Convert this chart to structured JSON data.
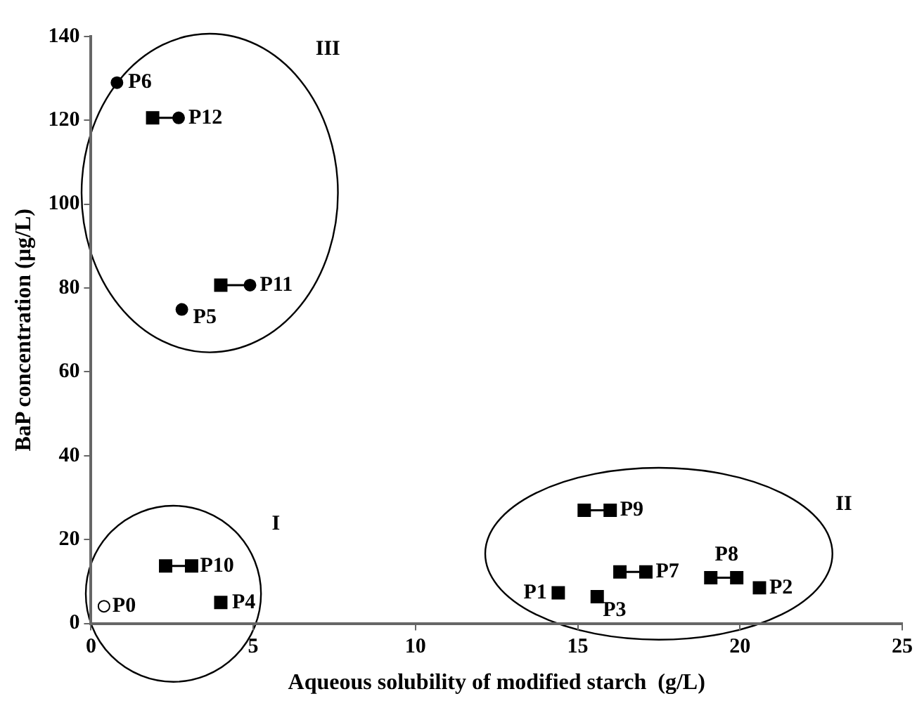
{
  "chart_data": {
    "type": "scatter",
    "xlabel": "Aqueous solubility of modified starch  (g/L)",
    "ylabel": "BaP concentration (µg/L)",
    "xlim": [
      0,
      25
    ],
    "xticks": [
      0,
      5,
      10,
      15,
      20,
      25
    ],
    "ylim": [
      0,
      140
    ],
    "yticks": [
      0,
      20,
      40,
      60,
      80,
      100,
      120,
      140
    ],
    "legend": false,
    "series": [
      {
        "type": "line",
        "color": "#000000",
        "marker": "none",
        "x": [
          16.3,
          17.1
        ],
        "values": [
          12.3,
          12.3
        ]
      },
      {
        "type": "line",
        "color": "#000000",
        "marker": "none",
        "x": [
          19.1,
          19.9
        ],
        "values": [
          10.9,
          10.9
        ]
      },
      {
        "type": "line",
        "color": "#000000",
        "marker": "none",
        "x": [
          15.2,
          16.0
        ],
        "values": [
          27,
          27
        ]
      },
      {
        "type": "line",
        "color": "#000000",
        "marker": "none",
        "x": [
          2.3,
          3.1
        ],
        "values": [
          13.7,
          13.7
        ]
      },
      {
        "type": "line",
        "color": "#000000",
        "marker": "none",
        "x": [
          4.0,
          4.9
        ],
        "values": [
          80.7,
          80.7
        ]
      },
      {
        "type": "line",
        "color": "#000000",
        "marker": "none",
        "x": [
          1.9,
          2.7
        ],
        "values": [
          120.6,
          120.6
        ]
      },
      {
        "color": "#000000",
        "marker": "square",
        "x": [
          14.4,
          20.6,
          15.6,
          4.0,
          16.3,
          17.1,
          19.1,
          19.9,
          15.2,
          16.0,
          2.3,
          3.1,
          4.0,
          1.9
        ],
        "values": [
          7.3,
          8.5,
          6.4,
          5.0,
          12.3,
          12.3,
          10.9,
          10.9,
          27,
          27,
          13.7,
          13.7,
          80.7,
          120.6
        ]
      },
      {
        "color": "#000000",
        "marker": "circle",
        "x": [
          2.8,
          0.8,
          4.9,
          2.7
        ],
        "values": [
          74.9,
          129,
          80.7,
          120.6
        ]
      },
      {
        "color": "#ffffff",
        "marker": "circle",
        "x": [
          0.4
        ],
        "values": [
          4.1
        ]
      }
    ],
    "annotations": [
      {
        "text": "P0",
        "x": 0.4,
        "y": 4.1
      },
      {
        "text": "P1",
        "x": 14.4,
        "y": 7.3
      },
      {
        "text": "P2",
        "x": 20.6,
        "y": 8.5
      },
      {
        "text": "P3",
        "x": 15.6,
        "y": 6.4
      },
      {
        "text": "P4",
        "x": 4.0,
        "y": 5.0
      },
      {
        "text": "P5",
        "x": 2.8,
        "y": 74.9
      },
      {
        "text": "P6",
        "x": 0.8,
        "y": 129
      },
      {
        "text": "P7",
        "x": 17.1,
        "y": 12.3
      },
      {
        "text": "P8",
        "x": 19.5,
        "y": 10.9
      },
      {
        "text": "P9",
        "x": 16.0,
        "y": 27
      },
      {
        "text": "P10",
        "x": 3.1,
        "y": 13.7
      },
      {
        "text": "P11",
        "x": 4.9,
        "y": 80.7
      },
      {
        "text": "P12",
        "x": 2.7,
        "y": 120.6
      },
      "I",
      "II",
      "III"
    ]
  }
}
